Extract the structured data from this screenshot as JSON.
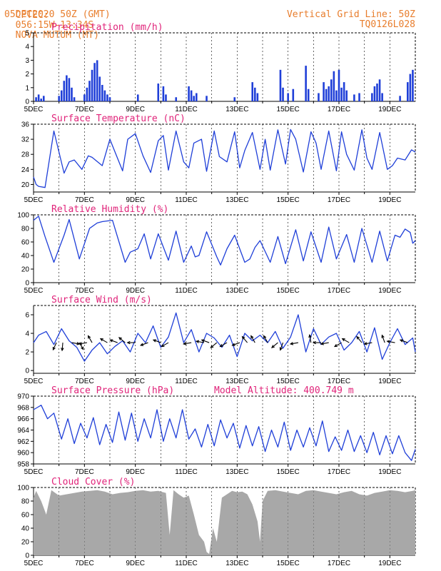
{
  "header": {
    "source": "CPTEC:",
    "coords": "056:15W-13:34S",
    "station": "NOVA MUTUM (MT)",
    "date": "05DEC2020 50Z (GMT)",
    "grid_note": "Vertical Grid Line: 50Z",
    "code": "TQ0126L028"
  },
  "chart_data": [
    {
      "id": "precip",
      "type": "bar",
      "title": "Precipitation (mm/h)",
      "ylim": [
        0,
        5
      ],
      "yticks": [
        0,
        1,
        2,
        3,
        4,
        5
      ],
      "xticks": [
        "5DEC",
        "7DEC",
        "9DEC",
        "11DEC",
        "13DEC",
        "15DEC",
        "17DEC",
        "19DEC"
      ],
      "xlim_days": [
        5,
        20
      ],
      "color": "#1f3fd8",
      "series": [
        {
          "x": [
            5.1,
            5.2,
            5.3,
            5.4,
            6.0,
            6.1,
            6.2,
            6.3,
            6.4,
            6.5,
            6.6,
            7.0,
            7.1,
            7.2,
            7.3,
            7.4,
            7.5,
            7.6,
            7.7,
            7.8,
            7.9,
            8.0,
            9.1,
            9.9,
            10.1,
            10.2,
            10.6,
            11.1,
            11.2,
            11.3,
            11.4,
            11.8,
            12.9,
            13.6,
            13.7,
            13.8,
            14.7,
            14.8,
            15.0,
            15.2,
            15.7,
            15.8,
            16.2,
            16.4,
            16.5,
            16.6,
            16.7,
            16.8,
            16.9,
            17.0,
            17.1,
            17.2,
            17.3,
            17.6,
            17.8,
            18.3,
            18.4,
            18.5,
            18.6,
            18.7,
            19.4,
            19.7,
            19.8,
            19.9
          ],
          "values": [
            0.3,
            0.5,
            0.2,
            0.4,
            0.4,
            0.8,
            1.5,
            1.9,
            1.7,
            1.0,
            0.3,
            0.5,
            1.0,
            1.5,
            2.3,
            2.8,
            3.0,
            1.8,
            1.2,
            0.8,
            0.5,
            0.3,
            0.5,
            1.3,
            1.1,
            0.5,
            0.3,
            1.1,
            0.8,
            0.4,
            0.6,
            0.4,
            0.3,
            1.4,
            1.0,
            0.6,
            2.3,
            1.0,
            0.6,
            0.9,
            2.6,
            0.9,
            0.6,
            1.4,
            0.9,
            1.1,
            1.6,
            2.2,
            0.8,
            2.3,
            1.0,
            1.4,
            0.8,
            0.5,
            0.6,
            0.6,
            1.1,
            1.3,
            1.6,
            0.6,
            0.4,
            1.4,
            2.0,
            2.3
          ]
        }
      ]
    },
    {
      "id": "temp",
      "type": "line",
      "title": "Surface Temperature (nC)",
      "ylim": [
        18,
        36
      ],
      "yticks": [
        20,
        24,
        28,
        32,
        36
      ],
      "xticks": [
        "5DEC",
        "7DEC",
        "9DEC",
        "11DEC",
        "13DEC",
        "15DEC",
        "17DEC",
        "19DEC"
      ],
      "xlim_days": [
        5,
        20
      ],
      "color": "#1f3fd8",
      "series": [
        {
          "x": [
            5.0,
            5.1,
            5.2,
            5.45,
            5.8,
            6.2,
            6.4,
            6.6,
            6.9,
            7.15,
            7.3,
            7.7,
            8.0,
            8.5,
            8.7,
            9.0,
            9.3,
            9.6,
            9.9,
            10.1,
            10.3,
            10.6,
            10.9,
            11.1,
            11.3,
            11.6,
            11.8,
            12.1,
            12.3,
            12.6,
            12.9,
            13.1,
            13.3,
            13.6,
            13.9,
            14.1,
            14.3,
            14.6,
            14.9,
            15.1,
            15.3,
            15.6,
            15.9,
            16.1,
            16.3,
            16.6,
            16.9,
            17.1,
            17.3,
            17.6,
            17.9,
            18.1,
            18.3,
            18.6,
            18.9,
            19.1,
            19.3,
            19.6,
            19.85,
            20.0
          ],
          "y": [
            22,
            20,
            19.5,
            19.2,
            34.2,
            23,
            26,
            26.5,
            24,
            27.6,
            27.2,
            25,
            32,
            23.6,
            32,
            33.5,
            27.6,
            23.2,
            31.6,
            33,
            23.8,
            34.2,
            26,
            24.4,
            31,
            32,
            23.5,
            34.2,
            27.4,
            26,
            34,
            24.4,
            29,
            33.8,
            24,
            32,
            23.8,
            34.5,
            25.4,
            34.6,
            32,
            23.3,
            34,
            31,
            24,
            34.2,
            23.6,
            34,
            28,
            23.8,
            34.5,
            27,
            24,
            33.8,
            24,
            25,
            27,
            26.5,
            29.2,
            28.6
          ]
        }
      ]
    },
    {
      "id": "rh",
      "type": "line",
      "title": "Relative Humidity (%)",
      "ylim": [
        0,
        100
      ],
      "yticks": [
        0,
        20,
        40,
        60,
        80,
        100
      ],
      "xticks": [
        "5DEC",
        "7DEC",
        "9DEC",
        "11DEC",
        "13DEC",
        "15DEC",
        "17DEC",
        "19DEC"
      ],
      "xlim_days": [
        5,
        20
      ],
      "color": "#1f3fd8",
      "series": [
        {
          "x": [
            5.0,
            5.2,
            5.45,
            5.8,
            6.2,
            6.4,
            6.8,
            7.2,
            7.5,
            7.7,
            8.1,
            8.6,
            8.8,
            9.1,
            9.35,
            9.6,
            9.9,
            10.3,
            10.6,
            10.9,
            11.2,
            11.35,
            11.5,
            11.8,
            12.2,
            12.35,
            12.6,
            12.9,
            13.3,
            13.5,
            13.7,
            13.9,
            14.3,
            14.6,
            14.9,
            15.3,
            15.6,
            15.9,
            16.3,
            16.6,
            16.9,
            17.3,
            17.6,
            17.9,
            18.3,
            18.6,
            18.9,
            19.2,
            19.4,
            19.6,
            19.8,
            19.9,
            20.0
          ],
          "y": [
            92,
            98,
            68,
            30,
            70,
            93,
            35,
            80,
            88,
            90,
            92,
            30,
            45,
            50,
            72,
            35,
            72,
            33,
            76,
            30,
            54,
            38,
            40,
            75,
            38,
            26,
            50,
            70,
            30,
            35,
            52,
            62,
            30,
            68,
            28,
            78,
            32,
            75,
            30,
            82,
            35,
            71,
            30,
            80,
            30,
            76,
            32,
            70,
            67,
            79,
            74,
            58,
            62
          ]
        }
      ]
    },
    {
      "id": "wind",
      "type": "line",
      "title": "Surface Wind (m/s)",
      "ylim": [
        -0.3,
        7
      ],
      "yticks": [
        0,
        2,
        4,
        6
      ],
      "xticks": [
        "5DEC",
        "7DEC",
        "9DEC",
        "11DEC",
        "13DEC",
        "15DEC",
        "17DEC",
        "19DEC"
      ],
      "xlim_days": [
        5,
        20
      ],
      "color": "#1f3fd8",
      "series": [
        {
          "x": [
            5.0,
            5.2,
            5.5,
            5.8,
            6.1,
            6.4,
            6.7,
            7.0,
            7.3,
            7.6,
            7.9,
            8.2,
            8.5,
            8.8,
            9.1,
            9.4,
            9.7,
            10.0,
            10.3,
            10.6,
            10.9,
            11.2,
            11.5,
            11.8,
            12.1,
            12.4,
            12.7,
            13.0,
            13.3,
            13.6,
            13.9,
            14.2,
            14.5,
            14.8,
            15.1,
            15.4,
            15.7,
            16.0,
            16.3,
            16.6,
            16.9,
            17.2,
            17.5,
            17.8,
            18.1,
            18.4,
            18.7,
            19.0,
            19.3,
            19.6,
            19.9,
            20.0
          ],
          "y": [
            3,
            3.8,
            4.2,
            2.8,
            4.5,
            3.2,
            2.5,
            1,
            2.2,
            3.0,
            1.8,
            2.6,
            3.2,
            2.0,
            4.0,
            3.0,
            4.8,
            2.5,
            3.6,
            6.2,
            3.0,
            4.4,
            2.0,
            4.0,
            3.5,
            2.5,
            3.8,
            1.5,
            4.0,
            3.2,
            3.8,
            3.0,
            4.2,
            2.4,
            3.6,
            6.0,
            2.0,
            4.5,
            2.8,
            3.6,
            4.0,
            2.2,
            3.0,
            4.2,
            2.0,
            4.6,
            1.2,
            3.0,
            4.5,
            2.8,
            3.5,
            2.0
          ]
        }
      ],
      "arrows": [
        [
          5.9,
          115
        ],
        [
          6.15,
          95
        ],
        [
          6.5,
          10
        ],
        [
          6.8,
          60
        ],
        [
          7.1,
          170
        ],
        [
          7.3,
          -120
        ],
        [
          7.9,
          -150
        ],
        [
          8.3,
          200
        ],
        [
          8.6,
          -140
        ],
        [
          9.0,
          180
        ],
        [
          9.5,
          160
        ],
        [
          10.0,
          200
        ],
        [
          10.3,
          150
        ],
        [
          11.2,
          170
        ],
        [
          11.7,
          190
        ],
        [
          11.9,
          200
        ],
        [
          12.2,
          140
        ],
        [
          12.6,
          150
        ],
        [
          13.1,
          160
        ],
        [
          13.4,
          -130
        ],
        [
          13.7,
          -120
        ],
        [
          14.2,
          -120
        ],
        [
          14.6,
          140
        ],
        [
          14.8,
          110
        ],
        [
          15.4,
          170
        ],
        [
          15.9,
          -100
        ],
        [
          16.3,
          180
        ],
        [
          16.6,
          170
        ],
        [
          17.1,
          150
        ],
        [
          17.4,
          210
        ],
        [
          17.9,
          -130
        ],
        [
          18.3,
          170
        ],
        [
          18.8,
          -110
        ],
        [
          19.2,
          190
        ],
        [
          19.7,
          200
        ]
      ]
    },
    {
      "id": "pressure",
      "type": "line",
      "title": "Surface Pressure (hPa)",
      "annotation": "Model Altitude: 400.749 m",
      "ylim": [
        958,
        970
      ],
      "yticks": [
        958,
        960,
        962,
        964,
        966,
        968,
        970
      ],
      "xticks": [
        "5DEC",
        "7DEC",
        "9DEC",
        "11DEC",
        "13DEC",
        "15DEC",
        "17DEC",
        "19DEC"
      ],
      "xlim_days": [
        5,
        20
      ],
      "color": "#1f3fd8",
      "series": [
        {
          "x": [
            5.0,
            5.3,
            5.55,
            5.8,
            6.1,
            6.35,
            6.6,
            6.85,
            7.1,
            7.35,
            7.6,
            7.85,
            8.1,
            8.35,
            8.6,
            8.85,
            9.1,
            9.35,
            9.6,
            9.85,
            10.1,
            10.35,
            10.6,
            10.85,
            11.1,
            11.35,
            11.6,
            11.85,
            12.1,
            12.35,
            12.6,
            12.85,
            13.1,
            13.35,
            13.6,
            13.85,
            14.1,
            14.35,
            14.6,
            14.85,
            15.1,
            15.35,
            15.6,
            15.85,
            16.1,
            16.35,
            16.6,
            16.85,
            17.1,
            17.35,
            17.6,
            17.85,
            18.1,
            18.35,
            18.6,
            18.85,
            19.1,
            19.35,
            19.6,
            19.85,
            20.0
          ],
          "y": [
            967.6,
            968.4,
            966.0,
            967.0,
            962.4,
            966.0,
            961.6,
            965.2,
            962.6,
            966.2,
            961.4,
            965.0,
            961.8,
            967.2,
            962.2,
            967.0,
            962.0,
            966.0,
            962.6,
            967.6,
            962.0,
            966.0,
            962.6,
            967.6,
            962.4,
            964.2,
            961.0,
            965.0,
            961.2,
            965.8,
            962.6,
            965.2,
            960.8,
            964.8,
            961.2,
            964.6,
            960.2,
            964.0,
            961.0,
            965.4,
            960.4,
            964.0,
            961.0,
            964.4,
            961.2,
            965.6,
            960.2,
            962.8,
            960.4,
            964.0,
            960.2,
            963.0,
            960.0,
            963.6,
            959.6,
            963.0,
            959.8,
            963.0,
            960.0,
            958.6,
            960.6
          ]
        }
      ]
    },
    {
      "id": "cloud",
      "type": "area",
      "title": "Cloud Cover (%)",
      "ylim": [
        0,
        100
      ],
      "yticks": [
        0,
        20,
        40,
        60,
        80,
        100
      ],
      "xticks": [
        "5DEC",
        "7DEC",
        "9DEC",
        "11DEC",
        "13DEC",
        "15DEC",
        "17DEC",
        "19DEC"
      ],
      "xlim_days": [
        5,
        20
      ],
      "color": "#a8a8a8",
      "series": [
        {
          "x": [
            5.0,
            5.1,
            5.3,
            5.4,
            5.5,
            5.7,
            6.0,
            6.3,
            6.6,
            6.9,
            7.2,
            7.5,
            7.8,
            8.1,
            8.4,
            8.7,
            9.0,
            9.3,
            9.6,
            9.9,
            10.2,
            10.35,
            10.5,
            10.7,
            10.9,
            11.1,
            11.3,
            11.5,
            11.7,
            11.8,
            11.9,
            12.05,
            12.2,
            12.4,
            12.6,
            12.8,
            13.0,
            13.2,
            13.4,
            13.6,
            13.8,
            13.9,
            14.0,
            14.2,
            14.5,
            14.8,
            15.1,
            15.4,
            15.7,
            16.0,
            16.3,
            16.6,
            16.9,
            17.2,
            17.5,
            17.8,
            18.1,
            18.4,
            18.7,
            19.0,
            19.3,
            19.6,
            19.9,
            20.0
          ],
          "y": [
            85,
            95,
            80,
            70,
            60,
            96,
            88,
            90,
            92,
            94,
            95,
            96,
            94,
            90,
            92,
            93,
            95,
            96,
            94,
            95,
            92,
            30,
            96,
            90,
            85,
            88,
            60,
            30,
            20,
            5,
            2,
            40,
            20,
            85,
            90,
            95,
            93,
            94,
            90,
            75,
            50,
            20,
            80,
            95,
            96,
            94,
            92,
            90,
            95,
            96,
            94,
            92,
            90,
            93,
            95,
            90,
            88,
            92,
            94,
            96,
            95,
            93,
            95,
            96
          ]
        }
      ]
    }
  ]
}
